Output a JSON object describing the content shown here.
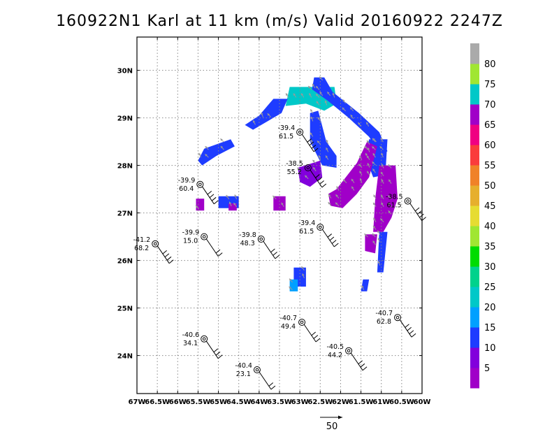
{
  "title": "160922N1 Karl at 11 km (m/s) Valid 20160922 2247Z",
  "map": {
    "lon_range": [
      -67,
      -60
    ],
    "lat_range": [
      23.2,
      30.7
    ],
    "lon_ticks": [
      "67W",
      "66.5W",
      "66W",
      "65.5W",
      "65W",
      "64.5W",
      "64W",
      "63.5W",
      "63W",
      "62.5W",
      "62W",
      "61.5W",
      "61W",
      "60.5W",
      "60W"
    ],
    "lat_ticks": [
      {
        "lat": 24,
        "label": "24N"
      },
      {
        "lat": 25,
        "label": "25N"
      },
      {
        "lat": 26,
        "label": "26N"
      },
      {
        "lat": 27,
        "label": "27N"
      },
      {
        "lat": 28,
        "label": "28N"
      },
      {
        "lat": 29,
        "label": "29N"
      },
      {
        "lat": 30,
        "label": "30N"
      }
    ],
    "grid": "dotted"
  },
  "colorbar": {
    "labels": [
      "5",
      "10",
      "15",
      "20",
      "25",
      "30",
      "35",
      "40",
      "45",
      "50",
      "55",
      "60",
      "65",
      "70",
      "75",
      "80"
    ],
    "colors": [
      "#a000c8",
      "#8200dc",
      "#1e3cff",
      "#00a0ff",
      "#00c8c8",
      "#00d28c",
      "#00dc00",
      "#a0e632",
      "#e6dc32",
      "#e6af2d",
      "#f08228",
      "#fa3c3c",
      "#f00082",
      "#a000c8",
      "#00c8c8",
      "#a0e632",
      "#aaaaaa"
    ]
  },
  "observations": [
    {
      "lon": -63.0,
      "lat": 28.7,
      "t": "-39.4",
      "s": "61.5"
    },
    {
      "lon": -62.8,
      "lat": 27.95,
      "t": "-38.5",
      "s": "55.2"
    },
    {
      "lon": -65.45,
      "lat": 27.6,
      "t": "-39.9",
      "s": "60.4"
    },
    {
      "lon": -60.35,
      "lat": 27.25,
      "t": "-38.5",
      "s": "61.5"
    },
    {
      "lon": -62.5,
      "lat": 26.7,
      "t": "-39.4",
      "s": "61.5"
    },
    {
      "lon": -66.55,
      "lat": 26.35,
      "t": "-41.2",
      "s": "68.2"
    },
    {
      "lon": -65.35,
      "lat": 26.5,
      "t": "-39.9",
      "s": "15.0"
    },
    {
      "lon": -63.95,
      "lat": 26.45,
      "t": "-39.8",
      "s": "48.3"
    },
    {
      "lon": -62.95,
      "lat": 24.7,
      "t": "-40.7",
      "s": "49.4"
    },
    {
      "lon": -60.6,
      "lat": 24.8,
      "t": "-40.7",
      "s": "62.8"
    },
    {
      "lon": -65.35,
      "lat": 24.35,
      "t": "-40.6",
      "s": "34.1"
    },
    {
      "lon": -61.8,
      "lat": 24.1,
      "t": "-40.5",
      "s": "44.2"
    },
    {
      "lon": -64.05,
      "lat": 23.7,
      "t": "-40.4",
      "s": "23.1"
    }
  ],
  "vector_key": {
    "label": "50"
  },
  "wind_field": [
    {
      "poly": [
        [
          -63.25,
          29.65
        ],
        [
          -62.15,
          29.65
        ],
        [
          -62.1,
          29.3
        ],
        [
          -62.4,
          29.15
        ],
        [
          -62.85,
          29.3
        ],
        [
          -63.35,
          29.25
        ]
      ],
      "color": "#00c8c8"
    },
    {
      "poly": [
        [
          -62.65,
          29.85
        ],
        [
          -62.4,
          29.85
        ],
        [
          -62.2,
          29.55
        ],
        [
          -61.55,
          29.1
        ],
        [
          -61.05,
          28.7
        ],
        [
          -60.85,
          28.3
        ],
        [
          -61.0,
          28.2
        ],
        [
          -61.3,
          28.6
        ],
        [
          -61.8,
          29.0
        ],
        [
          -62.3,
          29.35
        ],
        [
          -62.7,
          29.6
        ]
      ],
      "color": "#1e3cff"
    },
    {
      "poly": [
        [
          -62.75,
          29.1
        ],
        [
          -62.55,
          29.15
        ],
        [
          -62.35,
          28.5
        ],
        [
          -62.1,
          28.2
        ],
        [
          -62.1,
          27.95
        ],
        [
          -62.45,
          28.0
        ],
        [
          -62.75,
          28.5
        ]
      ],
      "color": "#1e3cff"
    },
    {
      "poly": [
        [
          -61.3,
          28.55
        ],
        [
          -60.85,
          28.55
        ],
        [
          -60.9,
          27.8
        ],
        [
          -61.2,
          27.75
        ],
        [
          -61.4,
          28.2
        ]
      ],
      "color": "#1e3cff"
    },
    {
      "poly": [
        [
          -63.65,
          29.4
        ],
        [
          -63.3,
          29.4
        ],
        [
          -63.45,
          29.1
        ],
        [
          -63.75,
          28.95
        ],
        [
          -64.15,
          28.75
        ],
        [
          -64.35,
          28.85
        ],
        [
          -64.0,
          29.05
        ]
      ],
      "color": "#1e3cff"
    },
    {
      "poly": [
        [
          -65.35,
          28.35
        ],
        [
          -64.7,
          28.55
        ],
        [
          -64.6,
          28.4
        ],
        [
          -65.05,
          28.2
        ],
        [
          -65.4,
          28.0
        ],
        [
          -65.5,
          28.1
        ]
      ],
      "color": "#1e3cff"
    },
    {
      "poly": [
        [
          -63.05,
          27.95
        ],
        [
          -62.5,
          28.1
        ],
        [
          -62.45,
          27.75
        ],
        [
          -62.75,
          27.55
        ],
        [
          -63.0,
          27.65
        ]
      ],
      "color": "#8200dc"
    },
    {
      "poly": [
        [
          -62.3,
          27.4
        ],
        [
          -62.1,
          27.5
        ],
        [
          -61.6,
          28.05
        ],
        [
          -61.35,
          28.5
        ],
        [
          -61.1,
          28.4
        ],
        [
          -61.3,
          27.75
        ],
        [
          -61.6,
          27.4
        ],
        [
          -61.95,
          27.1
        ],
        [
          -62.25,
          27.15
        ]
      ],
      "color": "#a000c8"
    },
    {
      "poly": [
        [
          -61.05,
          28.0
        ],
        [
          -60.65,
          28.0
        ],
        [
          -60.6,
          27.3
        ],
        [
          -60.75,
          26.9
        ],
        [
          -60.95,
          26.6
        ],
        [
          -61.2,
          26.6
        ],
        [
          -61.15,
          27.3
        ]
      ],
      "color": "#a000c8"
    },
    {
      "poly": [
        [
          -61.05,
          26.6
        ],
        [
          -60.85,
          26.6
        ],
        [
          -60.95,
          25.75
        ],
        [
          -61.1,
          25.75
        ]
      ],
      "color": "#1e3cff"
    },
    {
      "poly": [
        [
          -61.4,
          26.55
        ],
        [
          -61.1,
          26.55
        ],
        [
          -61.15,
          26.15
        ],
        [
          -61.4,
          26.2
        ]
      ],
      "color": "#a000c8"
    },
    {
      "poly": [
        [
          -63.15,
          25.85
        ],
        [
          -62.85,
          25.85
        ],
        [
          -62.85,
          25.45
        ],
        [
          -63.15,
          25.45
        ]
      ],
      "color": "#1e3cff"
    },
    {
      "poly": [
        [
          -63.25,
          25.6
        ],
        [
          -63.05,
          25.6
        ],
        [
          -63.05,
          25.35
        ],
        [
          -63.25,
          25.35
        ]
      ],
      "color": "#00a0ff"
    },
    {
      "poly": [
        [
          -61.45,
          25.6
        ],
        [
          -61.3,
          25.6
        ],
        [
          -61.35,
          25.35
        ],
        [
          -61.5,
          25.35
        ]
      ],
      "color": "#1e3cff"
    },
    {
      "poly": [
        [
          -65.55,
          27.3
        ],
        [
          -65.35,
          27.3
        ],
        [
          -65.35,
          27.05
        ],
        [
          -65.55,
          27.05
        ]
      ],
      "color": "#a000c8"
    },
    {
      "poly": [
        [
          -65.0,
          27.35
        ],
        [
          -64.5,
          27.35
        ],
        [
          -64.5,
          27.1
        ],
        [
          -65.0,
          27.1
        ]
      ],
      "color": "#1e3cff"
    },
    {
      "poly": [
        [
          -64.75,
          27.2
        ],
        [
          -64.55,
          27.2
        ],
        [
          -64.55,
          27.05
        ],
        [
          -64.75,
          27.05
        ]
      ],
      "color": "#a000c8"
    },
    {
      "poly": [
        [
          -63.65,
          27.35
        ],
        [
          -63.35,
          27.35
        ],
        [
          -63.35,
          27.05
        ],
        [
          -63.65,
          27.05
        ]
      ],
      "color": "#a000c8"
    }
  ]
}
